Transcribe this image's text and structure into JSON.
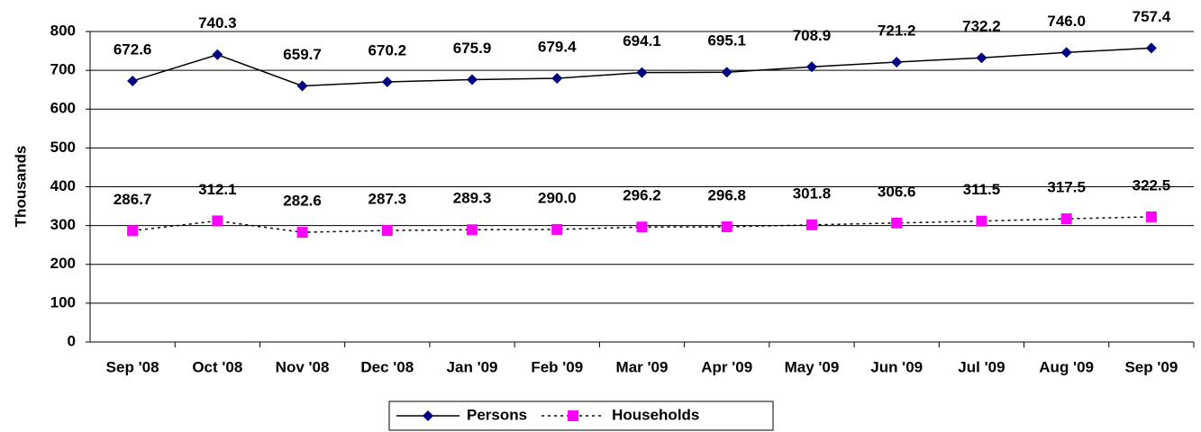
{
  "chart_data": {
    "type": "line",
    "y_label": "Thousands",
    "categories": [
      "Sep '08",
      "Oct '08",
      "Nov '08",
      "Dec '08",
      "Jan '09",
      "Feb '09",
      "Mar '09",
      "Apr '09",
      "May '09",
      "Jun '09",
      "Jul '09",
      "Aug '09",
      "Sep '09"
    ],
    "series": [
      {
        "name": "Persons",
        "color": "#000080",
        "line_color": "#000000",
        "line_style": "solid",
        "marker": "diamond",
        "values": [
          672.6,
          740.3,
          659.7,
          670.2,
          675.9,
          679.4,
          694.1,
          695.1,
          708.9,
          721.2,
          732.2,
          746.0,
          757.4
        ],
        "value_labels": [
          "672.6",
          "740.3",
          "659.7",
          "670.2",
          "675.9",
          "679.4",
          "694.1",
          "695.1",
          "708.9",
          "721.2",
          "732.2",
          "746.0",
          "757.4"
        ]
      },
      {
        "name": "Households",
        "color": "#ff00ff",
        "line_color": "#000000",
        "line_style": "dotted",
        "marker": "square",
        "values": [
          286.7,
          312.1,
          282.6,
          287.3,
          289.3,
          290.0,
          296.2,
          296.8,
          301.8,
          306.6,
          311.5,
          317.5,
          322.5
        ],
        "value_labels": [
          "286.7",
          "312.1",
          "282.6",
          "287.3",
          "289.3",
          "290.0",
          "296.2",
          "296.8",
          "301.8",
          "306.6",
          "311.5",
          "317.5",
          "322.5"
        ]
      }
    ],
    "ylim": [
      0,
      800
    ],
    "yticks": [
      0,
      100,
      200,
      300,
      400,
      500,
      600,
      700,
      800
    ],
    "grid": true,
    "legend": "bottom"
  }
}
